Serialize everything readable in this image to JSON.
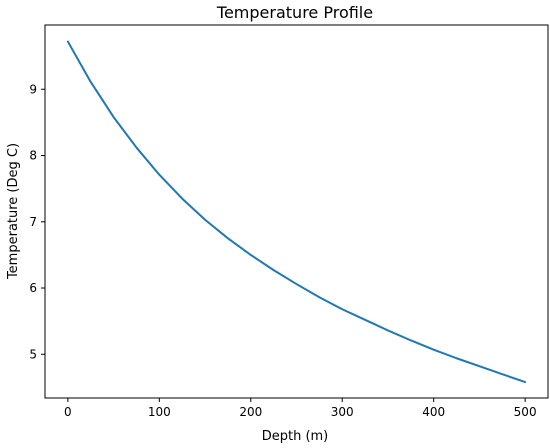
{
  "chart_data": {
    "type": "line",
    "title": "Temperature Profile",
    "xlabel": "Depth (m)",
    "ylabel": "Temperature (Deg C)",
    "xlim": [
      -25,
      525
    ],
    "ylim": [
      4.34,
      9.97
    ],
    "xticks": [
      0,
      100,
      200,
      300,
      400,
      500
    ],
    "yticks": [
      5,
      6,
      7,
      8,
      9
    ],
    "grid": false,
    "color": "#1f77b4",
    "series": [
      {
        "x": [
          0,
          25,
          50,
          75,
          100,
          125,
          150,
          175,
          200,
          225,
          250,
          275,
          300,
          325,
          350,
          375,
          400,
          425,
          450,
          475,
          500
        ],
        "values": [
          9.72,
          9.11,
          8.58,
          8.12,
          7.71,
          7.35,
          7.03,
          6.75,
          6.5,
          6.27,
          6.06,
          5.86,
          5.68,
          5.52,
          5.36,
          5.21,
          5.07,
          4.94,
          4.82,
          4.7,
          4.58
        ]
      }
    ]
  }
}
